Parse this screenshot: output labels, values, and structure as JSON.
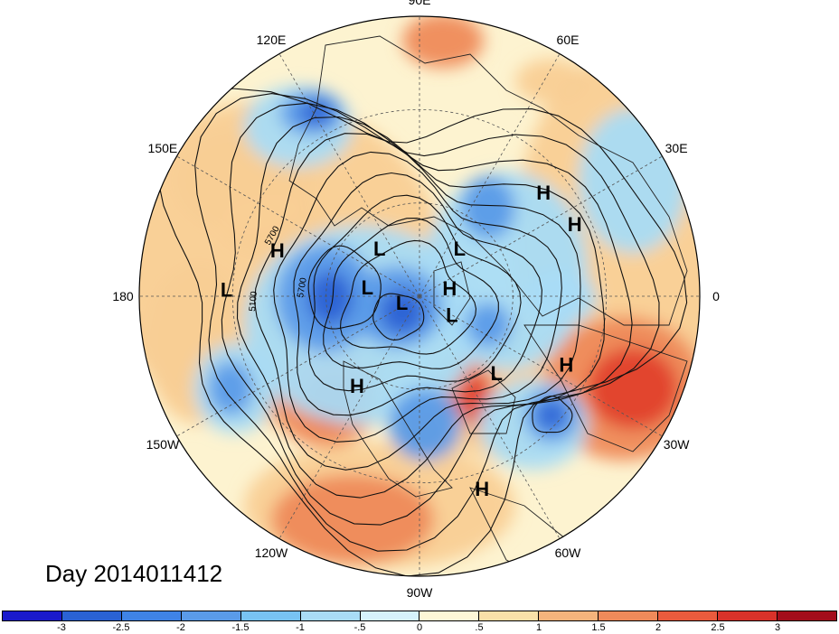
{
  "map": {
    "longitude_labels": [
      {
        "text": "90E",
        "lon": 90
      },
      {
        "text": "60E",
        "lon": 60
      },
      {
        "text": "30E",
        "lon": 30
      },
      {
        "text": "0",
        "lon": 0
      },
      {
        "text": "30W",
        "lon": -30
      },
      {
        "text": "60W",
        "lon": -60
      },
      {
        "text": "90W",
        "lon": -90
      },
      {
        "text": "120W",
        "lon": -120
      },
      {
        "text": "150W",
        "lon": -150
      },
      {
        "text": "180",
        "lon": 180
      },
      {
        "text": "150E",
        "lon": 150
      },
      {
        "text": "120E",
        "lon": 120
      }
    ],
    "pressure_centers": [
      {
        "type": "H",
        "lon": 40,
        "lat": 38
      },
      {
        "type": "H",
        "lon": 25,
        "lat": 35
      },
      {
        "type": "H",
        "lon": 162,
        "lat": 42
      },
      {
        "type": "L",
        "lon": 178,
        "lat": 28
      },
      {
        "type": "L",
        "lon": 130,
        "lat": 70
      },
      {
        "type": "L",
        "lon": 50,
        "lat": 70
      },
      {
        "type": "L",
        "lon": 170,
        "lat": 73
      },
      {
        "type": "L",
        "lon": -160,
        "lat": 84
      },
      {
        "type": "H",
        "lon": 15,
        "lat": 80
      },
      {
        "type": "L",
        "lon": -30,
        "lat": 78
      },
      {
        "type": "H",
        "lon": -25,
        "lat": 38
      },
      {
        "type": "L",
        "lon": -45,
        "lat": 55
      },
      {
        "type": "H",
        "lon": -125,
        "lat": 55
      },
      {
        "type": "H",
        "lon": -72,
        "lat": 25
      }
    ],
    "contour_labels": [
      "5700",
      "5100",
      "5700"
    ],
    "anomaly_colors": {
      "strong_neg": "#2a62d4",
      "neg": "#5a9be8",
      "weak_neg": "#a9dcf6",
      "neutral": "#fdf3d0",
      "weak_pos": "#f9cf95",
      "pos": "#ef8a5a",
      "strong_pos": "#e0412c"
    }
  },
  "title": {
    "day_label": "Day 2014011412"
  },
  "colorbar": {
    "colors": [
      "#1a1acc",
      "#2a62d4",
      "#3f83e6",
      "#5a9be8",
      "#78c3f3",
      "#a9dcf6",
      "#d6f2fb",
      "#fdf7d7",
      "#f9e0a8",
      "#f5b47c",
      "#ef8a5a",
      "#ea5b3d",
      "#d9322a",
      "#a30d1b"
    ],
    "tick_labels": [
      "-3",
      "-2.5",
      "-2",
      "-1.5",
      "-1",
      "-.5",
      "0",
      ".5",
      "1",
      "1.5",
      "2",
      "2.5",
      "3"
    ]
  }
}
